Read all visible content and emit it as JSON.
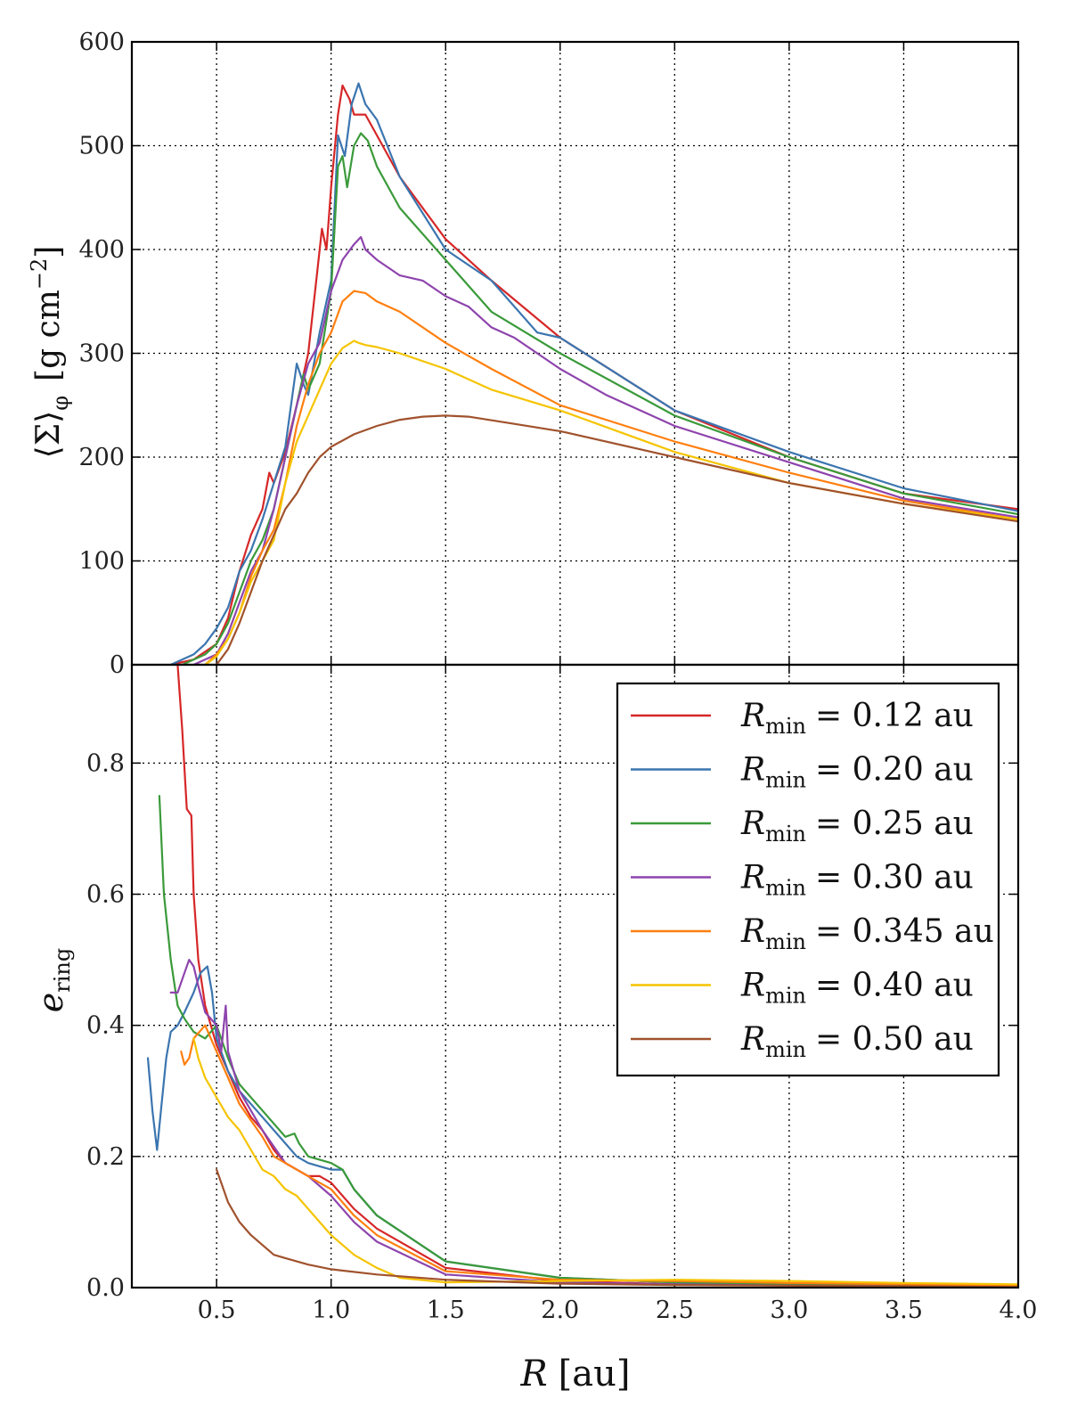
{
  "chart_data": [
    {
      "type": "line",
      "panel": "top",
      "xlabel": "",
      "ylabel": "⟨Σ⟩φ [g cm⁻²]",
      "ylabel_parts": {
        "main": "⟨Σ⟩",
        "sub": "φ",
        "units": "[g cm",
        "exp": "−2",
        "close": "]"
      },
      "xlim": [
        0.13,
        4.0
      ],
      "ylim": [
        0,
        600
      ],
      "yticks": [
        0,
        100,
        200,
        300,
        400,
        500,
        600
      ],
      "ytick_labels": [
        "0",
        "100",
        "200",
        "300",
        "400",
        "500",
        "600"
      ],
      "grid": true,
      "series": [
        {
          "name": "Rmin = 0.12 au",
          "color": "#d62728",
          "x": [
            0.3,
            0.4,
            0.5,
            0.55,
            0.6,
            0.65,
            0.7,
            0.73,
            0.75,
            0.8,
            0.85,
            0.9,
            0.94,
            0.96,
            0.98,
            1.0,
            1.03,
            1.05,
            1.08,
            1.1,
            1.15,
            1.2,
            1.3,
            1.5,
            1.7,
            2.0,
            2.5,
            3.0,
            3.5,
            4.0
          ],
          "y": [
            0,
            5,
            20,
            45,
            90,
            125,
            150,
            185,
            175,
            205,
            250,
            300,
            380,
            420,
            400,
            460,
            530,
            558,
            545,
            530,
            530,
            510,
            470,
            410,
            370,
            315,
            245,
            200,
            165,
            150
          ]
        },
        {
          "name": "Rmin = 0.20 au",
          "color": "#3b75af",
          "x": [
            0.3,
            0.4,
            0.45,
            0.5,
            0.55,
            0.6,
            0.65,
            0.7,
            0.75,
            0.8,
            0.85,
            0.88,
            0.9,
            0.95,
            1.0,
            1.03,
            1.06,
            1.09,
            1.12,
            1.15,
            1.2,
            1.3,
            1.5,
            1.7,
            1.9,
            2.0,
            2.5,
            3.0,
            3.5,
            4.0
          ],
          "y": [
            0,
            10,
            20,
            35,
            55,
            90,
            110,
            140,
            175,
            210,
            290,
            270,
            260,
            320,
            370,
            510,
            490,
            540,
            560,
            540,
            525,
            470,
            400,
            370,
            320,
            315,
            245,
            205,
            170,
            148
          ]
        },
        {
          "name": "Rmin = 0.25 au",
          "color": "#3a9a3a",
          "x": [
            0.35,
            0.45,
            0.5,
            0.55,
            0.6,
            0.65,
            0.7,
            0.75,
            0.8,
            0.85,
            0.88,
            0.9,
            0.95,
            1.0,
            1.03,
            1.05,
            1.07,
            1.1,
            1.13,
            1.16,
            1.2,
            1.3,
            1.5,
            1.7,
            2.0,
            2.5,
            3.0,
            3.5,
            4.0
          ],
          "y": [
            0,
            10,
            20,
            40,
            70,
            100,
            120,
            150,
            200,
            250,
            280,
            265,
            290,
            360,
            480,
            490,
            460,
            500,
            512,
            505,
            480,
            440,
            390,
            340,
            300,
            240,
            200,
            165,
            145
          ]
        },
        {
          "name": "Rmin = 0.30 au",
          "color": "#8e44ad",
          "x": [
            0.4,
            0.5,
            0.55,
            0.6,
            0.65,
            0.7,
            0.75,
            0.8,
            0.85,
            0.9,
            0.95,
            1.0,
            1.05,
            1.1,
            1.13,
            1.15,
            1.2,
            1.3,
            1.4,
            1.5,
            1.6,
            1.7,
            1.8,
            1.9,
            2.0,
            2.2,
            2.5,
            3.0,
            3.5,
            4.0
          ],
          "y": [
            0,
            10,
            30,
            60,
            90,
            110,
            150,
            200,
            250,
            290,
            310,
            360,
            390,
            405,
            412,
            400,
            390,
            375,
            370,
            355,
            345,
            325,
            315,
            300,
            285,
            260,
            230,
            195,
            160,
            142
          ]
        },
        {
          "name": "Rmin = 0.345 au",
          "color": "#ff7f0e",
          "x": [
            0.45,
            0.5,
            0.55,
            0.6,
            0.65,
            0.7,
            0.75,
            0.8,
            0.85,
            0.9,
            0.95,
            1.0,
            1.05,
            1.1,
            1.15,
            1.2,
            1.3,
            1.5,
            1.7,
            2.0,
            2.5,
            3.0,
            3.5,
            4.0
          ],
          "y": [
            0,
            10,
            25,
            50,
            85,
            110,
            130,
            175,
            230,
            270,
            300,
            320,
            350,
            360,
            358,
            350,
            340,
            310,
            285,
            250,
            215,
            185,
            158,
            140
          ]
        },
        {
          "name": "Rmin = 0.40 au",
          "color": "#f5c400",
          "x": [
            0.45,
            0.5,
            0.55,
            0.6,
            0.65,
            0.7,
            0.75,
            0.8,
            0.85,
            0.9,
            0.95,
            1.0,
            1.05,
            1.1,
            1.12,
            1.15,
            1.2,
            1.3,
            1.5,
            1.7,
            2.0,
            2.5,
            3.0,
            3.5,
            4.0
          ],
          "y": [
            0,
            8,
            25,
            50,
            80,
            100,
            120,
            175,
            215,
            240,
            265,
            290,
            305,
            312,
            310,
            308,
            306,
            300,
            285,
            265,
            245,
            205,
            175,
            155,
            140
          ]
        },
        {
          "name": "Rmin = 0.50 au",
          "color": "#a0522d",
          "x": [
            0.5,
            0.55,
            0.6,
            0.65,
            0.7,
            0.75,
            0.8,
            0.85,
            0.9,
            0.95,
            1.0,
            1.1,
            1.2,
            1.3,
            1.4,
            1.5,
            1.6,
            1.8,
            2.0,
            2.5,
            3.0,
            3.5,
            4.0
          ],
          "y": [
            0,
            15,
            40,
            70,
            100,
            125,
            150,
            165,
            185,
            200,
            210,
            222,
            230,
            236,
            239,
            240,
            239,
            232,
            225,
            200,
            175,
            155,
            138
          ]
        }
      ]
    },
    {
      "type": "line",
      "panel": "bottom",
      "xlabel": "R [au]",
      "xlabel_parts": {
        "var": "R",
        "units": "[au]"
      },
      "ylabel": "e_ring",
      "ylabel_parts": {
        "main": "e",
        "sub": "ring"
      },
      "xlim": [
        0.13,
        4.0
      ],
      "ylim": [
        0,
        0.95
      ],
      "xticks": [
        0.5,
        1.0,
        1.5,
        2.0,
        2.5,
        3.0,
        3.5,
        4.0
      ],
      "xtick_labels": [
        "0.5",
        "1.0",
        "1.5",
        "2.0",
        "2.5",
        "3.0",
        "3.5",
        "4.0"
      ],
      "yticks": [
        0.0,
        0.2,
        0.4,
        0.6,
        0.8
      ],
      "ytick_labels": [
        "0.0",
        "0.2",
        "0.4",
        "0.6",
        "0.8"
      ],
      "grid": true,
      "legend": "upper right",
      "series": [
        {
          "name": "Rmin = 0.12 au",
          "color": "#d62728",
          "x": [
            0.33,
            0.35,
            0.37,
            0.39,
            0.4,
            0.42,
            0.45,
            0.5,
            0.55,
            0.6,
            0.65,
            0.7,
            0.75,
            0.8,
            0.85,
            0.9,
            0.95,
            1.0,
            1.1,
            1.2,
            1.5,
            2.0,
            2.5,
            3.0,
            3.5,
            4.0
          ],
          "y": [
            0.95,
            0.85,
            0.73,
            0.72,
            0.6,
            0.5,
            0.43,
            0.37,
            0.33,
            0.29,
            0.26,
            0.24,
            0.21,
            0.19,
            0.18,
            0.17,
            0.17,
            0.16,
            0.12,
            0.09,
            0.03,
            0.01,
            0.005,
            0.004,
            0.003,
            0.002
          ]
        },
        {
          "name": "Rmin = 0.20 au",
          "color": "#3b75af",
          "x": [
            0.2,
            0.22,
            0.24,
            0.26,
            0.28,
            0.3,
            0.33,
            0.36,
            0.4,
            0.43,
            0.46,
            0.48,
            0.5,
            0.55,
            0.6,
            0.7,
            0.8,
            0.85,
            0.9,
            0.95,
            1.0,
            1.05,
            1.1,
            1.2,
            1.5,
            2.0,
            2.5,
            3.0,
            3.5,
            4.0
          ],
          "y": [
            0.35,
            0.27,
            0.21,
            0.28,
            0.35,
            0.39,
            0.4,
            0.42,
            0.45,
            0.48,
            0.49,
            0.45,
            0.38,
            0.33,
            0.3,
            0.26,
            0.22,
            0.2,
            0.19,
            0.185,
            0.18,
            0.18,
            0.15,
            0.11,
            0.04,
            0.015,
            0.008,
            0.006,
            0.004,
            0.003
          ]
        },
        {
          "name": "Rmin = 0.25 au",
          "color": "#3a9a3a",
          "x": [
            0.25,
            0.27,
            0.3,
            0.33,
            0.36,
            0.4,
            0.45,
            0.5,
            0.55,
            0.6,
            0.7,
            0.8,
            0.84,
            0.86,
            0.9,
            1.0,
            1.05,
            1.1,
            1.2,
            1.5,
            2.0,
            2.5,
            3.0,
            3.5,
            4.0
          ],
          "y": [
            0.75,
            0.6,
            0.5,
            0.43,
            0.41,
            0.39,
            0.38,
            0.4,
            0.35,
            0.31,
            0.27,
            0.23,
            0.235,
            0.22,
            0.2,
            0.19,
            0.18,
            0.15,
            0.11,
            0.04,
            0.015,
            0.008,
            0.005,
            0.004,
            0.003
          ]
        },
        {
          "name": "Rmin = 0.30 au",
          "color": "#8e44ad",
          "x": [
            0.3,
            0.33,
            0.36,
            0.38,
            0.4,
            0.42,
            0.45,
            0.5,
            0.52,
            0.54,
            0.55,
            0.6,
            0.7,
            0.8,
            0.9,
            1.0,
            1.1,
            1.2,
            1.5,
            2.0,
            2.5,
            3.0,
            3.5,
            4.0
          ],
          "y": [
            0.45,
            0.45,
            0.48,
            0.5,
            0.49,
            0.46,
            0.42,
            0.4,
            0.36,
            0.43,
            0.36,
            0.3,
            0.24,
            0.19,
            0.17,
            0.14,
            0.1,
            0.07,
            0.02,
            0.008,
            0.005,
            0.003,
            0.002,
            0.002
          ]
        },
        {
          "name": "Rmin = 0.345 au",
          "color": "#ff7f0e",
          "x": [
            0.345,
            0.36,
            0.38,
            0.4,
            0.45,
            0.5,
            0.55,
            0.6,
            0.7,
            0.75,
            0.8,
            0.85,
            0.9,
            0.95,
            1.0,
            1.1,
            1.2,
            1.5,
            2.0,
            2.5,
            3.0,
            3.5,
            4.0
          ],
          "y": [
            0.36,
            0.34,
            0.35,
            0.38,
            0.4,
            0.36,
            0.32,
            0.28,
            0.23,
            0.2,
            0.19,
            0.18,
            0.17,
            0.16,
            0.15,
            0.11,
            0.08,
            0.025,
            0.012,
            0.01,
            0.007,
            0.005,
            0.003
          ]
        },
        {
          "name": "Rmin = 0.40 au",
          "color": "#f5c400",
          "x": [
            0.4,
            0.42,
            0.45,
            0.5,
            0.55,
            0.6,
            0.65,
            0.7,
            0.75,
            0.8,
            0.85,
            0.9,
            0.95,
            1.0,
            1.1,
            1.2,
            1.3,
            1.5,
            2.0,
            2.5,
            3.0,
            3.5,
            4.0
          ],
          "y": [
            0.38,
            0.35,
            0.32,
            0.29,
            0.26,
            0.24,
            0.21,
            0.18,
            0.17,
            0.15,
            0.14,
            0.12,
            0.1,
            0.08,
            0.05,
            0.03,
            0.015,
            0.008,
            0.01,
            0.012,
            0.01,
            0.007,
            0.005
          ]
        },
        {
          "name": "Rmin = 0.50 au",
          "color": "#a0522d",
          "x": [
            0.5,
            0.52,
            0.55,
            0.6,
            0.65,
            0.7,
            0.75,
            0.8,
            0.9,
            1.0,
            1.2,
            1.5,
            2.0,
            2.5,
            3.0,
            3.5,
            4.0
          ],
          "y": [
            0.18,
            0.16,
            0.13,
            0.1,
            0.08,
            0.065,
            0.05,
            0.045,
            0.035,
            0.028,
            0.02,
            0.012,
            0.006,
            0.004,
            0.003,
            0.002,
            0.001
          ]
        }
      ]
    }
  ],
  "legend": {
    "items": [
      {
        "var": "R",
        "sub": "min",
        "value": "= 0.12 au",
        "color": "#d62728"
      },
      {
        "var": "R",
        "sub": "min",
        "value": "= 0.20 au",
        "color": "#3b75af"
      },
      {
        "var": "R",
        "sub": "min",
        "value": "= 0.25 au",
        "color": "#3a9a3a"
      },
      {
        "var": "R",
        "sub": "min",
        "value": "= 0.30 au",
        "color": "#8e44ad"
      },
      {
        "var": "R",
        "sub": "min",
        "value": "= 0.345 au",
        "color": "#ff7f0e"
      },
      {
        "var": "R",
        "sub": "min",
        "value": "= 0.40 au",
        "color": "#f5c400"
      },
      {
        "var": "R",
        "sub": "min",
        "value": "= 0.50 au",
        "color": "#a0522d"
      }
    ]
  }
}
